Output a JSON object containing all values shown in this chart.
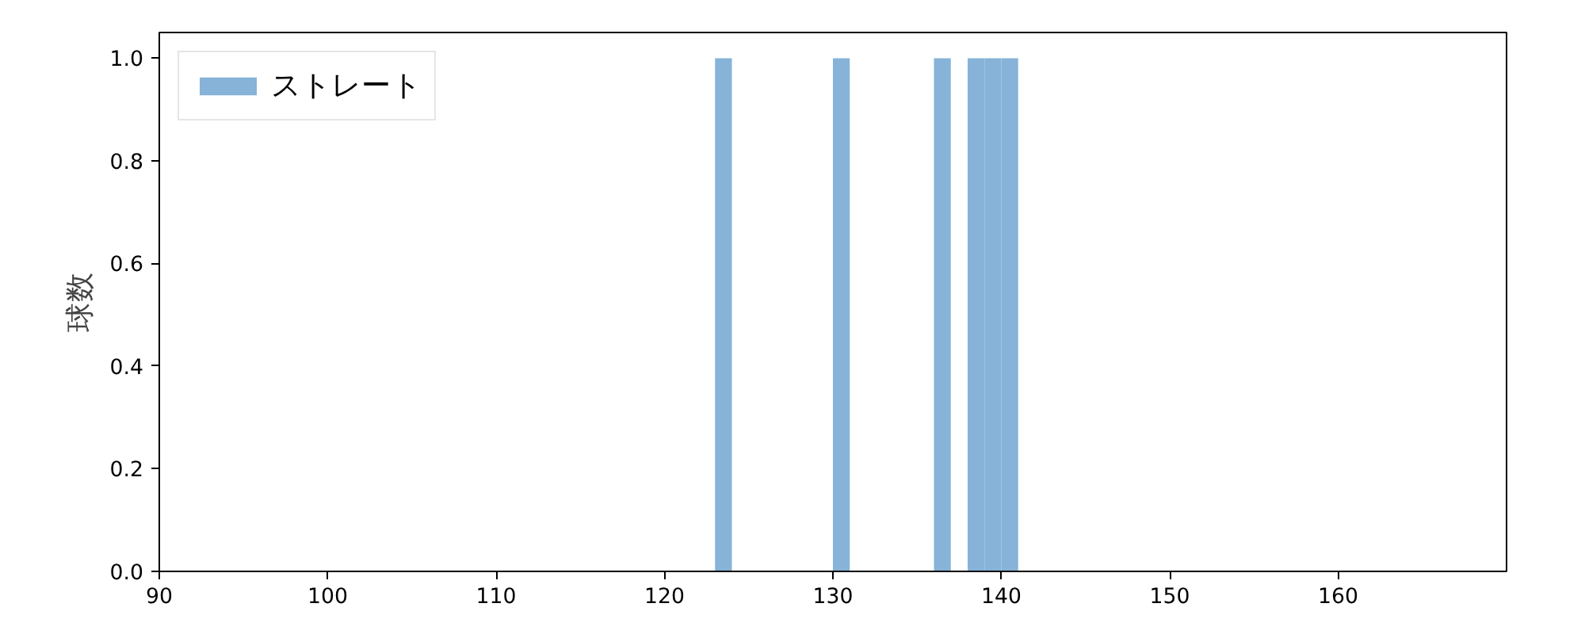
{
  "chart_data": {
    "type": "histogram",
    "ylabel": "球数",
    "bins": [
      123,
      124,
      125,
      126,
      127,
      128,
      129,
      130,
      131,
      132,
      133,
      134,
      135,
      136,
      137,
      138,
      139,
      140,
      141
    ],
    "series": [
      {
        "name": "ストレート",
        "color": "#86b3d7",
        "values": [
          1,
          0,
          0,
          0,
          0,
          0,
          0,
          1,
          0,
          0,
          0,
          0,
          0,
          1,
          0,
          1,
          1,
          1
        ]
      }
    ],
    "xlim": [
      90,
      170
    ],
    "xticks": [
      90,
      100,
      110,
      120,
      130,
      140,
      150,
      160
    ],
    "ylim": [
      0,
      1.05
    ],
    "yticks": [
      {
        "value": 0,
        "label": "0.0"
      },
      {
        "value": 0.2,
        "label": "0.2"
      },
      {
        "value": 0.4,
        "label": "0.4"
      },
      {
        "value": 0.6,
        "label": "0.6"
      },
      {
        "value": 0.8,
        "label": "0.8"
      },
      {
        "value": 1,
        "label": "1.0"
      }
    ],
    "grid": false,
    "legend": "top left"
  }
}
